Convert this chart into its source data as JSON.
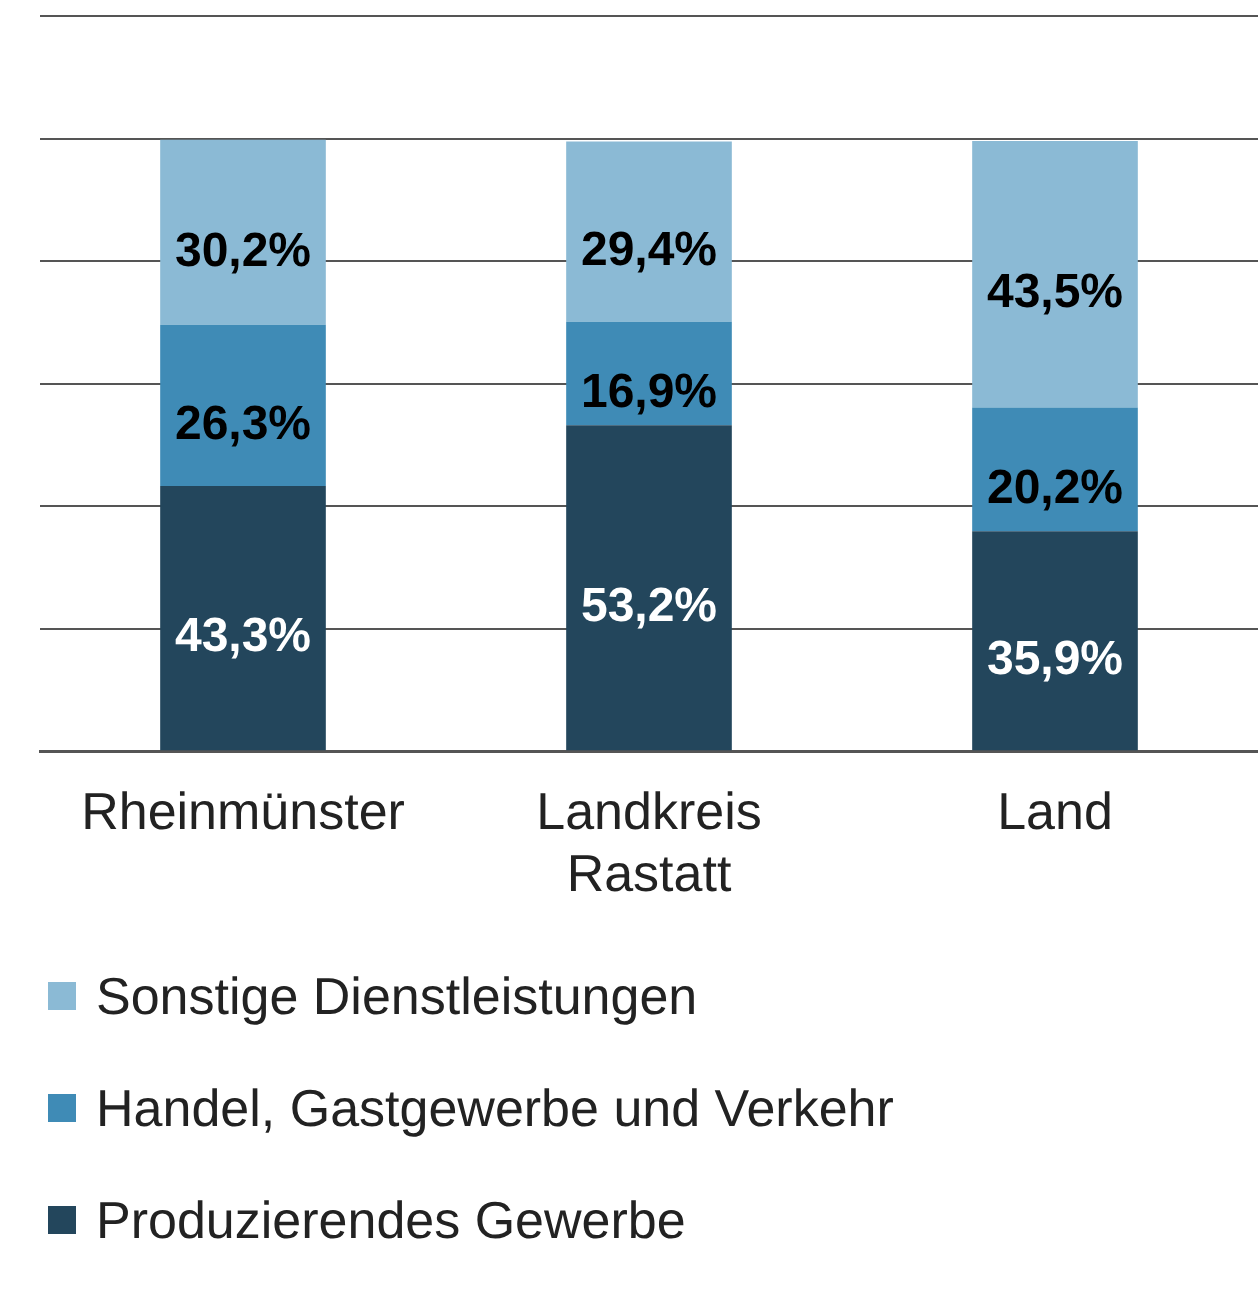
{
  "chart_data": {
    "type": "bar",
    "stacked": true,
    "categories": [
      "Rheinmünster",
      "Landkreis Rastatt",
      "Land"
    ],
    "series": [
      {
        "name": "Produzierendes Gewerbe",
        "color": "#23465c",
        "values": [
          43.3,
          53.2,
          35.9
        ],
        "value_labels": [
          "43,3%",
          "53,2%",
          "35,9%"
        ]
      },
      {
        "name": "Handel, Gastgewerbe und Verkehr",
        "color": "#3f8bb6",
        "values": [
          26.3,
          16.9,
          20.2
        ],
        "value_labels": [
          "26,3%",
          "16,9%",
          "20,2%"
        ]
      },
      {
        "name": "Sonstige Dienstleistungen",
        "color": "#8bbad5",
        "values": [
          30.2,
          29.4,
          43.5
        ],
        "value_labels": [
          "30,2%",
          "29,4%",
          "43,5%"
        ]
      }
    ],
    "ylim": [
      0,
      120
    ],
    "yticks": [
      {
        "value": 0,
        "label": null
      },
      {
        "value": 20,
        "label": null
      },
      {
        "value": 40,
        "label": null
      },
      {
        "value": 60,
        "label": null
      },
      {
        "value": 80,
        "label": null
      },
      {
        "value": 100,
        "label": null
      },
      {
        "value": 120,
        "label": null
      }
    ],
    "grid": "y",
    "tick_labels": "x",
    "legend": "bottom"
  }
}
